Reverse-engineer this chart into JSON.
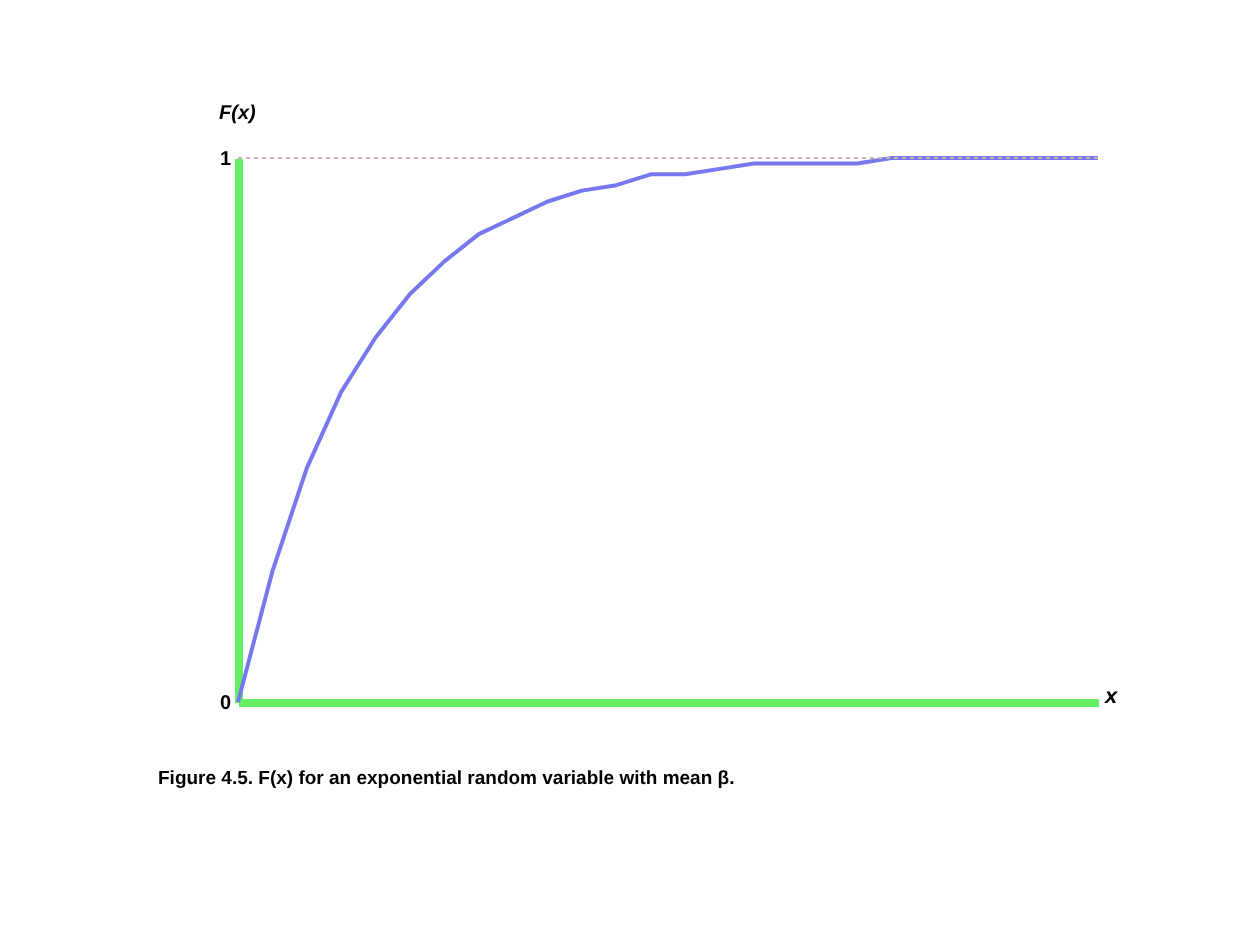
{
  "chart_data": {
    "type": "line",
    "xlabel": "x",
    "ylabel": "F(x)",
    "categories": [
      null,
      null,
      null,
      null,
      null,
      null,
      null,
      null,
      null,
      null,
      null,
      null,
      null,
      null,
      null,
      null,
      null,
      null,
      null,
      null,
      null,
      null,
      null,
      null,
      null,
      null
    ],
    "series": [
      {
        "color": "#7777ee",
        "values": [
          0,
          0.24,
          0.43,
          0.57,
          0.67,
          0.75,
          0.81,
          0.86,
          0.89,
          0.92,
          0.94,
          0.95,
          0.97,
          0.97,
          0.98,
          0.99,
          0.99,
          0.99,
          0.99,
          1.0,
          1.0,
          1.0,
          1.0,
          1.0,
          1.0,
          1.0
        ]
      }
    ],
    "ylim": [
      0,
      1
    ],
    "yticks": [
      0,
      1
    ],
    "ref_lines": [
      {
        "axis": "y",
        "value": 1,
        "color": "#c8b4b4",
        "line_style": "dotted"
      }
    ],
    "annotations": [
      "Figure 4.5. F(x) for an exponential random variable with mean β."
    ],
    "grid": false,
    "marker": "none",
    "line_style": "solid"
  }
}
